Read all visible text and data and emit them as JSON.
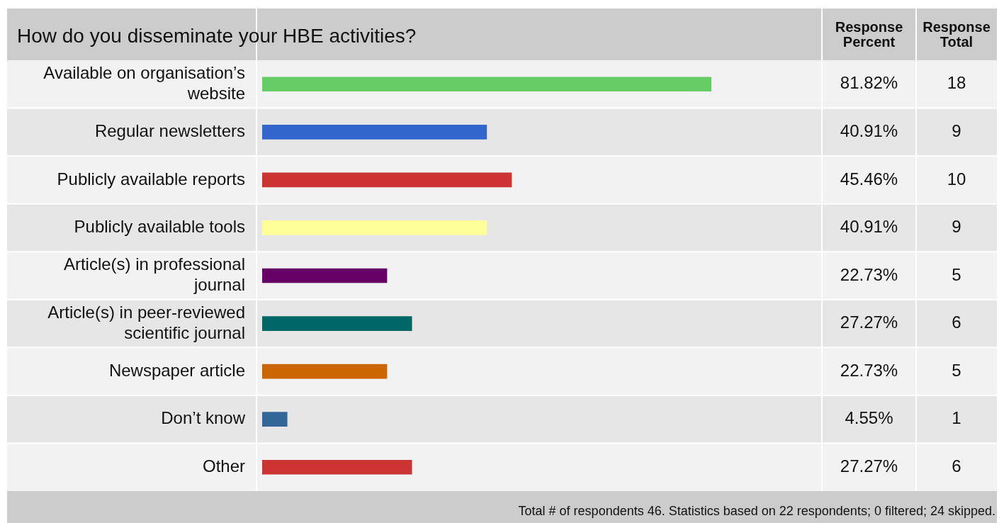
{
  "chart_data": {
    "type": "bar",
    "orientation": "horizontal",
    "title": "How do you disseminate your HBE activities?",
    "categories": [
      "Available on organisation’s website",
      "Regular newsletters",
      "Publicly available reports",
      "Publicly available tools",
      "Article(s) in professional journal",
      "Article(s) in peer-reviewed scientific journal",
      "Newspaper article",
      "Don’t know",
      "Other"
    ],
    "values": [
      81.82,
      40.91,
      45.46,
      40.91,
      22.73,
      27.27,
      22.73,
      4.55,
      27.27
    ],
    "colors": [
      "#66cc66",
      "#3366cc",
      "#cc3333",
      "#ffff99",
      "#660066",
      "#006666",
      "#cc6600",
      "#336699",
      "#cc3333"
    ],
    "value_labels": [
      "81.82%",
      "40.91%",
      "45.46%",
      "40.91%",
      "22.73%",
      "27.27%",
      "22.73%",
      "4.55%",
      "27.27%"
    ],
    "tick_labels": "y",
    "legend": false,
    "annotations": [
      "Response Percent",
      "Response Total",
      "Total # of respondents 46. Statistics based on 22 respondents; 0 filtered; 24 skipped.",
      "18",
      "9",
      "10",
      "9",
      "5",
      "6",
      "5",
      "1",
      "6"
    ]
  }
}
